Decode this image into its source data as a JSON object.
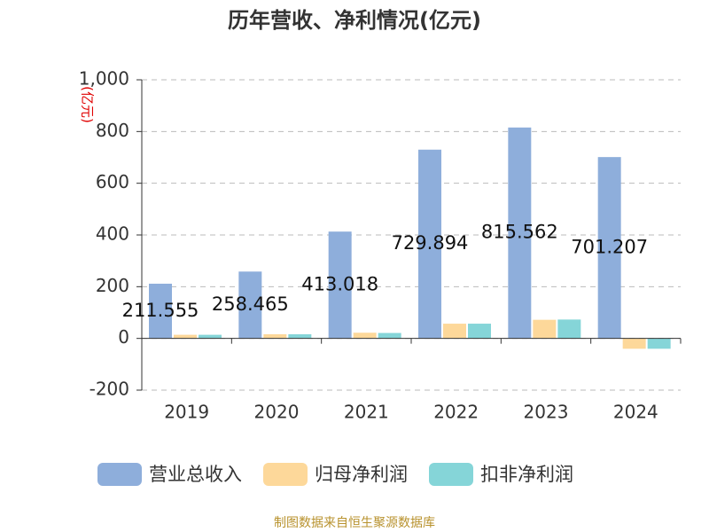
{
  "chart_data": {
    "type": "bar",
    "title": "历年营收、净利情况(亿元)",
    "y_label": "(亿元)",
    "categories": [
      "2019",
      "2020",
      "2021",
      "2022",
      "2023",
      "2024"
    ],
    "series": [
      {
        "name": "营业总收入",
        "color": "#8eaedb",
        "values": [
          211.555,
          258.465,
          413.018,
          729.894,
          815.562,
          701.207
        ]
      },
      {
        "name": "归母净利润",
        "color": "#fdd89a",
        "values": [
          14,
          16,
          22,
          57,
          72,
          -40
        ]
      },
      {
        "name": "扣非净利润",
        "color": "#85d5d8",
        "values": [
          14,
          16,
          21,
          57,
          73,
          -40
        ]
      }
    ],
    "ylim": [
      -200,
      1000
    ],
    "yticks": [
      -200,
      0,
      200,
      400,
      600,
      800,
      {
        "value": 1000,
        "label": "1,000"
      }
    ],
    "grid": true,
    "source": "制图数据来自恒生聚源数据库"
  }
}
